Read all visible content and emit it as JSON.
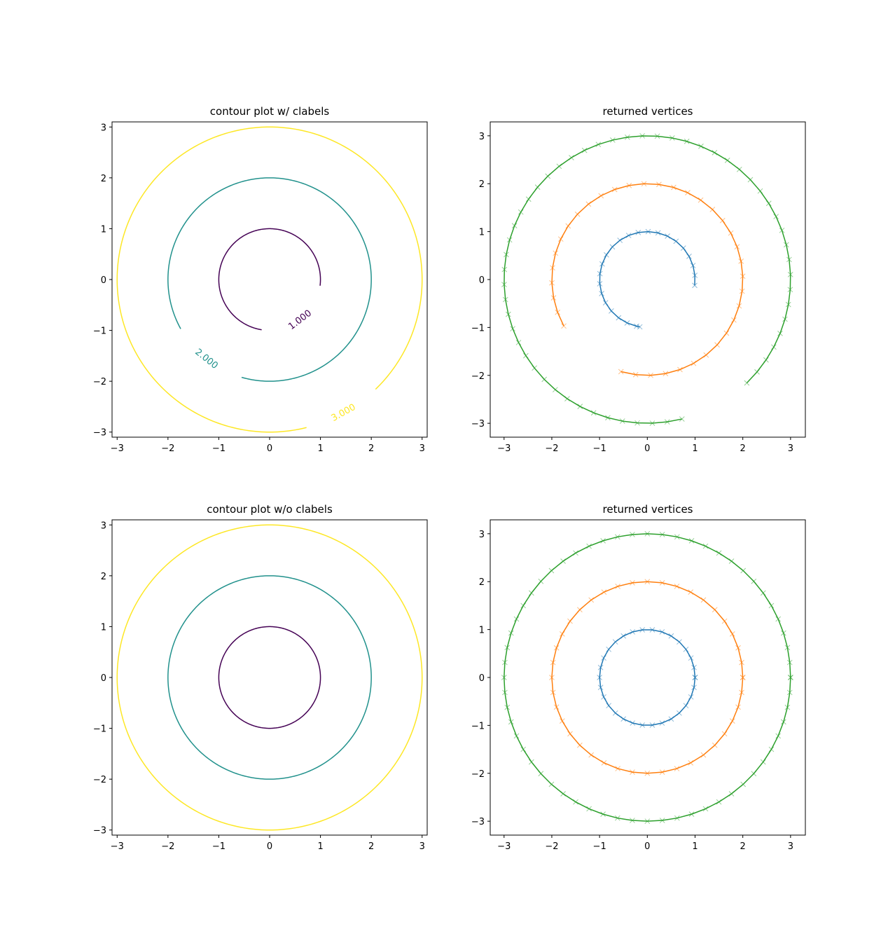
{
  "chart_data": [
    {
      "type": "contour",
      "title": "contour plot w/ clabels",
      "xlim": [
        -3.1,
        3.1
      ],
      "ylim": [
        -3.1,
        3.1
      ],
      "xticks": [
        {
          "value": -3,
          "label": "−3"
        },
        {
          "value": -2,
          "label": "−2"
        },
        {
          "value": -1,
          "label": "−1"
        },
        0,
        1,
        2,
        3
      ],
      "yticks": [
        {
          "value": -3,
          "label": "−3"
        },
        {
          "value": -2,
          "label": "−2"
        },
        {
          "value": -1,
          "label": "−1"
        },
        0,
        1,
        2,
        3
      ],
      "levels": [
        {
          "level": 1,
          "label": "1.000",
          "color": "#440154",
          "theta": [
            -7,
            261
          ]
        },
        {
          "level": 2,
          "label": "2.000",
          "color": "#21918c",
          "theta": [
            -106,
            209
          ]
        },
        {
          "level": 3,
          "label": "3.000",
          "color": "#fde725",
          "theta": [
            -46,
            284
          ]
        }
      ]
    },
    {
      "type": "vertices",
      "title": "returned vertices",
      "xlim": [
        -3.29,
        3.31
      ],
      "ylim": [
        -3.29,
        3.29
      ],
      "xticks": [
        {
          "value": -3,
          "label": "−3"
        },
        {
          "value": -2,
          "label": "−2"
        },
        {
          "value": -1,
          "label": "−1"
        },
        0,
        1,
        2,
        3
      ],
      "yticks": [
        {
          "value": -3,
          "label": "−3"
        },
        {
          "value": -2,
          "label": "−2"
        },
        {
          "value": -1,
          "label": "−1"
        },
        0,
        1,
        2,
        3
      ],
      "series": [
        {
          "level": 1,
          "color": "#1f77b4",
          "theta": [
            -7,
            5,
            17,
            29,
            41,
            53,
            65,
            77,
            89,
            101,
            113,
            125,
            137,
            149,
            161,
            173,
            185,
            197,
            209,
            221,
            233,
            245,
            257,
            261
          ]
        },
        {
          "level": 2,
          "color": "#ff7f0e",
          "theta": [
            -106,
            -97,
            -88,
            -79,
            -70,
            -61,
            -52,
            -43,
            -34,
            -25,
            -16,
            -7,
            2,
            11,
            20,
            29,
            38,
            47,
            56,
            65,
            74,
            83,
            92,
            101,
            110,
            119,
            128,
            137,
            146,
            155,
            164,
            173,
            182,
            191,
            200,
            209
          ]
        },
        {
          "level": 3,
          "color": "#2ca02c",
          "theta": [
            -46,
            -40,
            -34,
            -28,
            -22,
            -16,
            -10,
            -4,
            2,
            8,
            14,
            20,
            26,
            32,
            38,
            44,
            50,
            56,
            62,
            68,
            74,
            80,
            86,
            92,
            98,
            104,
            110,
            116,
            122,
            128,
            134,
            140,
            146,
            152,
            158,
            164,
            170,
            176,
            182,
            188,
            194,
            200,
            206,
            212,
            218,
            224,
            230,
            236,
            242,
            248,
            254,
            260,
            266,
            272,
            278,
            284
          ]
        }
      ]
    },
    {
      "type": "contour",
      "title": "contour plot w/o clabels",
      "xlim": [
        -3.1,
        3.1
      ],
      "ylim": [
        -3.1,
        3.1
      ],
      "xticks": [
        {
          "value": -3,
          "label": "−3"
        },
        {
          "value": -2,
          "label": "−2"
        },
        {
          "value": -1,
          "label": "−1"
        },
        0,
        1,
        2,
        3
      ],
      "yticks": [
        {
          "value": -3,
          "label": "−3"
        },
        {
          "value": -2,
          "label": "−2"
        },
        {
          "value": -1,
          "label": "−1"
        },
        0,
        1,
        2,
        3
      ],
      "levels": [
        {
          "level": 1,
          "color": "#440154",
          "theta": [
            0,
            360
          ]
        },
        {
          "level": 2,
          "color": "#21918c",
          "theta": [
            0,
            360
          ]
        },
        {
          "level": 3,
          "color": "#fde725",
          "theta": [
            0,
            360
          ]
        }
      ]
    },
    {
      "type": "vertices",
      "title": "returned vertices",
      "xlim": [
        -3.29,
        3.31
      ],
      "ylim": [
        -3.29,
        3.29
      ],
      "xticks": [
        {
          "value": -3,
          "label": "−3"
        },
        {
          "value": -2,
          "label": "−2"
        },
        {
          "value": -1,
          "label": "−1"
        },
        0,
        1,
        2,
        3
      ],
      "yticks": [
        {
          "value": -3,
          "label": "−3"
        },
        {
          "value": -2,
          "label": "−2"
        },
        {
          "value": -1,
          "label": "−1"
        },
        0,
        1,
        2,
        3
      ],
      "series": [
        {
          "level": 1,
          "color": "#1f77b4",
          "theta": [
            0,
            12,
            24,
            36,
            48,
            60,
            72,
            84,
            96,
            108,
            120,
            132,
            144,
            156,
            168,
            180,
            192,
            204,
            216,
            228,
            240,
            252,
            264,
            276,
            288,
            300,
            312,
            324,
            336,
            348,
            360
          ]
        },
        {
          "level": 2,
          "color": "#ff7f0e",
          "theta": [
            0,
            9,
            18,
            27,
            36,
            45,
            54,
            63,
            72,
            81,
            90,
            99,
            108,
            117,
            126,
            135,
            144,
            153,
            162,
            171,
            180,
            189,
            198,
            207,
            216,
            225,
            234,
            243,
            252,
            261,
            270,
            279,
            288,
            297,
            306,
            315,
            324,
            333,
            342,
            351,
            360
          ]
        },
        {
          "level": 3,
          "color": "#2ca02c",
          "theta": [
            0,
            6,
            12,
            18,
            24,
            30,
            36,
            42,
            48,
            54,
            60,
            66,
            72,
            78,
            84,
            90,
            96,
            102,
            108,
            114,
            120,
            126,
            132,
            138,
            144,
            150,
            156,
            162,
            168,
            174,
            180,
            186,
            192,
            198,
            204,
            210,
            216,
            222,
            228,
            234,
            240,
            246,
            252,
            258,
            264,
            270,
            276,
            282,
            288,
            294,
            300,
            306,
            312,
            318,
            324,
            330,
            336,
            342,
            348,
            354,
            360
          ]
        }
      ]
    }
  ]
}
